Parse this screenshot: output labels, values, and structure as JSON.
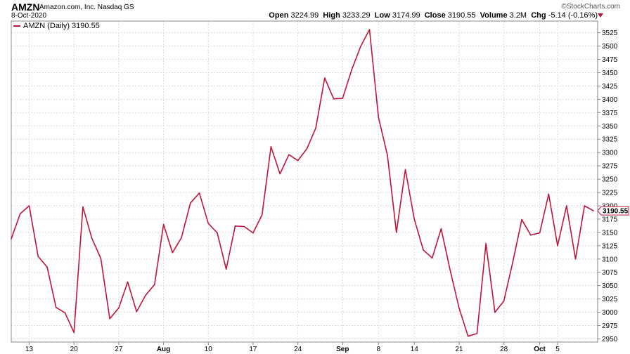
{
  "header": {
    "symbol": "AMZN",
    "company": "Amazon.com, Inc. Nasdaq GS",
    "date": "8-Oct-2020",
    "copyright": "©StockCharts.com",
    "open_label": "Open",
    "open": "3224.99",
    "high_label": "High",
    "high": "3233.29",
    "low_label": "Low",
    "low": "3174.99",
    "close_label": "Close",
    "close": "3190.55",
    "volume_label": "Volume",
    "volume": "3.2M",
    "chg_label": "Chg",
    "chg": "-5.14 (-0.16%)"
  },
  "legend": {
    "label": "AMZN (Daily) 3190.55"
  },
  "colors": {
    "line": "#c0143c",
    "grid": "#dddddd",
    "axis": "#888888"
  },
  "chart_data": {
    "type": "line",
    "series": [
      {
        "name": "AMZN (Daily)",
        "values": [
          3138,
          3185,
          3200,
          3105,
          3085,
          3009,
          2999,
          2962,
          3198,
          3139,
          3101,
          2988,
          3008,
          3057,
          3001,
          3032,
          3052,
          3165,
          3112,
          3140,
          3205,
          3224,
          3167,
          3149,
          3081,
          3162,
          3161,
          3149,
          3183,
          3311,
          3260,
          3296,
          3285,
          3307,
          3346,
          3440,
          3401,
          3402,
          3455,
          3499,
          3531,
          3366,
          3295,
          3150,
          3268,
          3175,
          3117,
          3102,
          3157,
          3079,
          3008,
          2955,
          2960,
          3129,
          3000,
          3021,
          3095,
          3174,
          3145,
          3149,
          3222,
          3125,
          3200,
          3100,
          3200,
          3190.55
        ]
      }
    ],
    "x_ticks": [
      {
        "label": "13",
        "index": 2
      },
      {
        "label": "20",
        "index": 7
      },
      {
        "label": "27",
        "index": 12
      },
      {
        "label": "Aug",
        "index": 17
      },
      {
        "label": "10",
        "index": 22
      },
      {
        "label": "17",
        "index": 27
      },
      {
        "label": "24",
        "index": 32
      },
      {
        "label": "Sep",
        "index": 37
      },
      {
        "label": "8",
        "index": 41
      },
      {
        "label": "14",
        "index": 45
      },
      {
        "label": "21",
        "index": 50
      },
      {
        "label": "28",
        "index": 55
      },
      {
        "label": "Oct",
        "index": 59
      },
      {
        "label": "5",
        "index": 61
      }
    ],
    "y_ticks": [
      2950,
      2975,
      3000,
      3025,
      3050,
      3075,
      3100,
      3125,
      3150,
      3175,
      3200,
      3225,
      3250,
      3275,
      3300,
      3325,
      3350,
      3375,
      3400,
      3425,
      3450,
      3475,
      3500,
      3525
    ],
    "ylim": [
      2944,
      3547
    ],
    "last_value_label": "3190.55",
    "grid": true
  }
}
